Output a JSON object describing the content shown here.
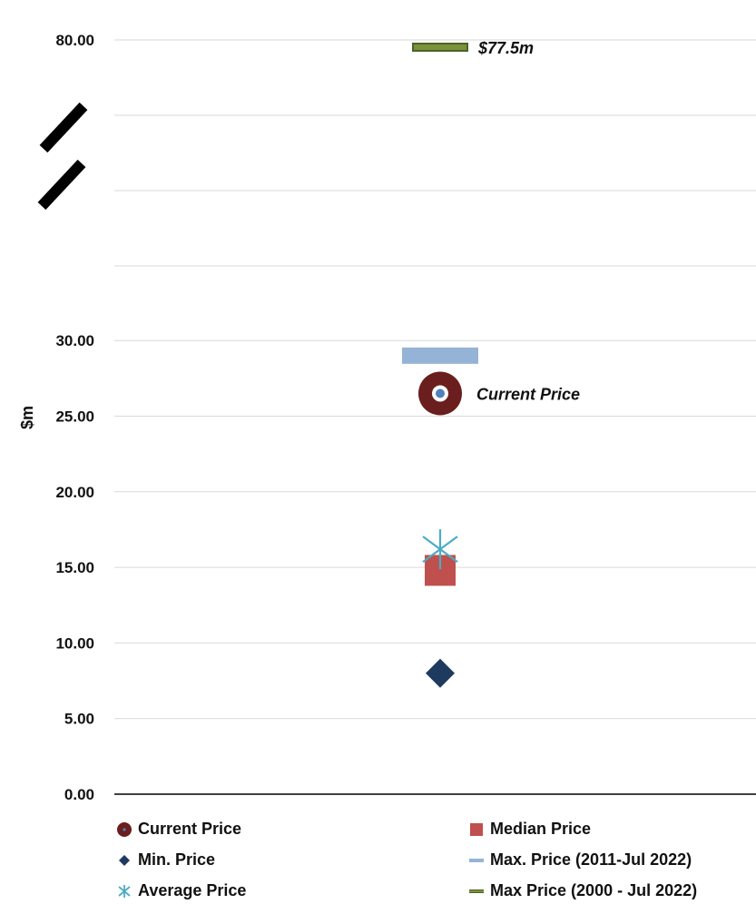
{
  "chart_data": {
    "type": "scatter",
    "title": "",
    "xlabel": "",
    "ylabel": "$m",
    "y_ticks": [
      "0.00",
      "5.00",
      "10.00",
      "15.00",
      "20.00",
      "25.00",
      "30.00",
      "80.00"
    ],
    "ylim_lower": [
      0,
      30
    ],
    "ylim_upper_tick": 80,
    "axis_break": true,
    "grid": true,
    "legend_position": "bottom",
    "series": [
      {
        "name": "Current Price",
        "marker": "target-circle",
        "color": "#6b1e1e",
        "value": 26.5
      },
      {
        "name": "Median Price",
        "marker": "square",
        "color": "#c0504d",
        "value": 14.8
      },
      {
        "name": "Min. Price",
        "marker": "diamond",
        "color": "#1f3a5f",
        "value": 8.0
      },
      {
        "name": "Max. Price (2011-Jul 2022)",
        "marker": "dash",
        "color": "#95b3d7",
        "value": 29.0
      },
      {
        "name": "Average Price",
        "marker": "asterisk",
        "color": "#4bacc6",
        "value": 16.2
      },
      {
        "name": "Max Price (2000 - Jul 2022)",
        "marker": "dash",
        "color": "#77933c",
        "value": 77.5
      }
    ],
    "annotations": [
      {
        "text": "Current Price",
        "series": "Current Price"
      },
      {
        "text": "$77.5m",
        "series": "Max Price (2000 - Jul 2022)"
      }
    ]
  }
}
